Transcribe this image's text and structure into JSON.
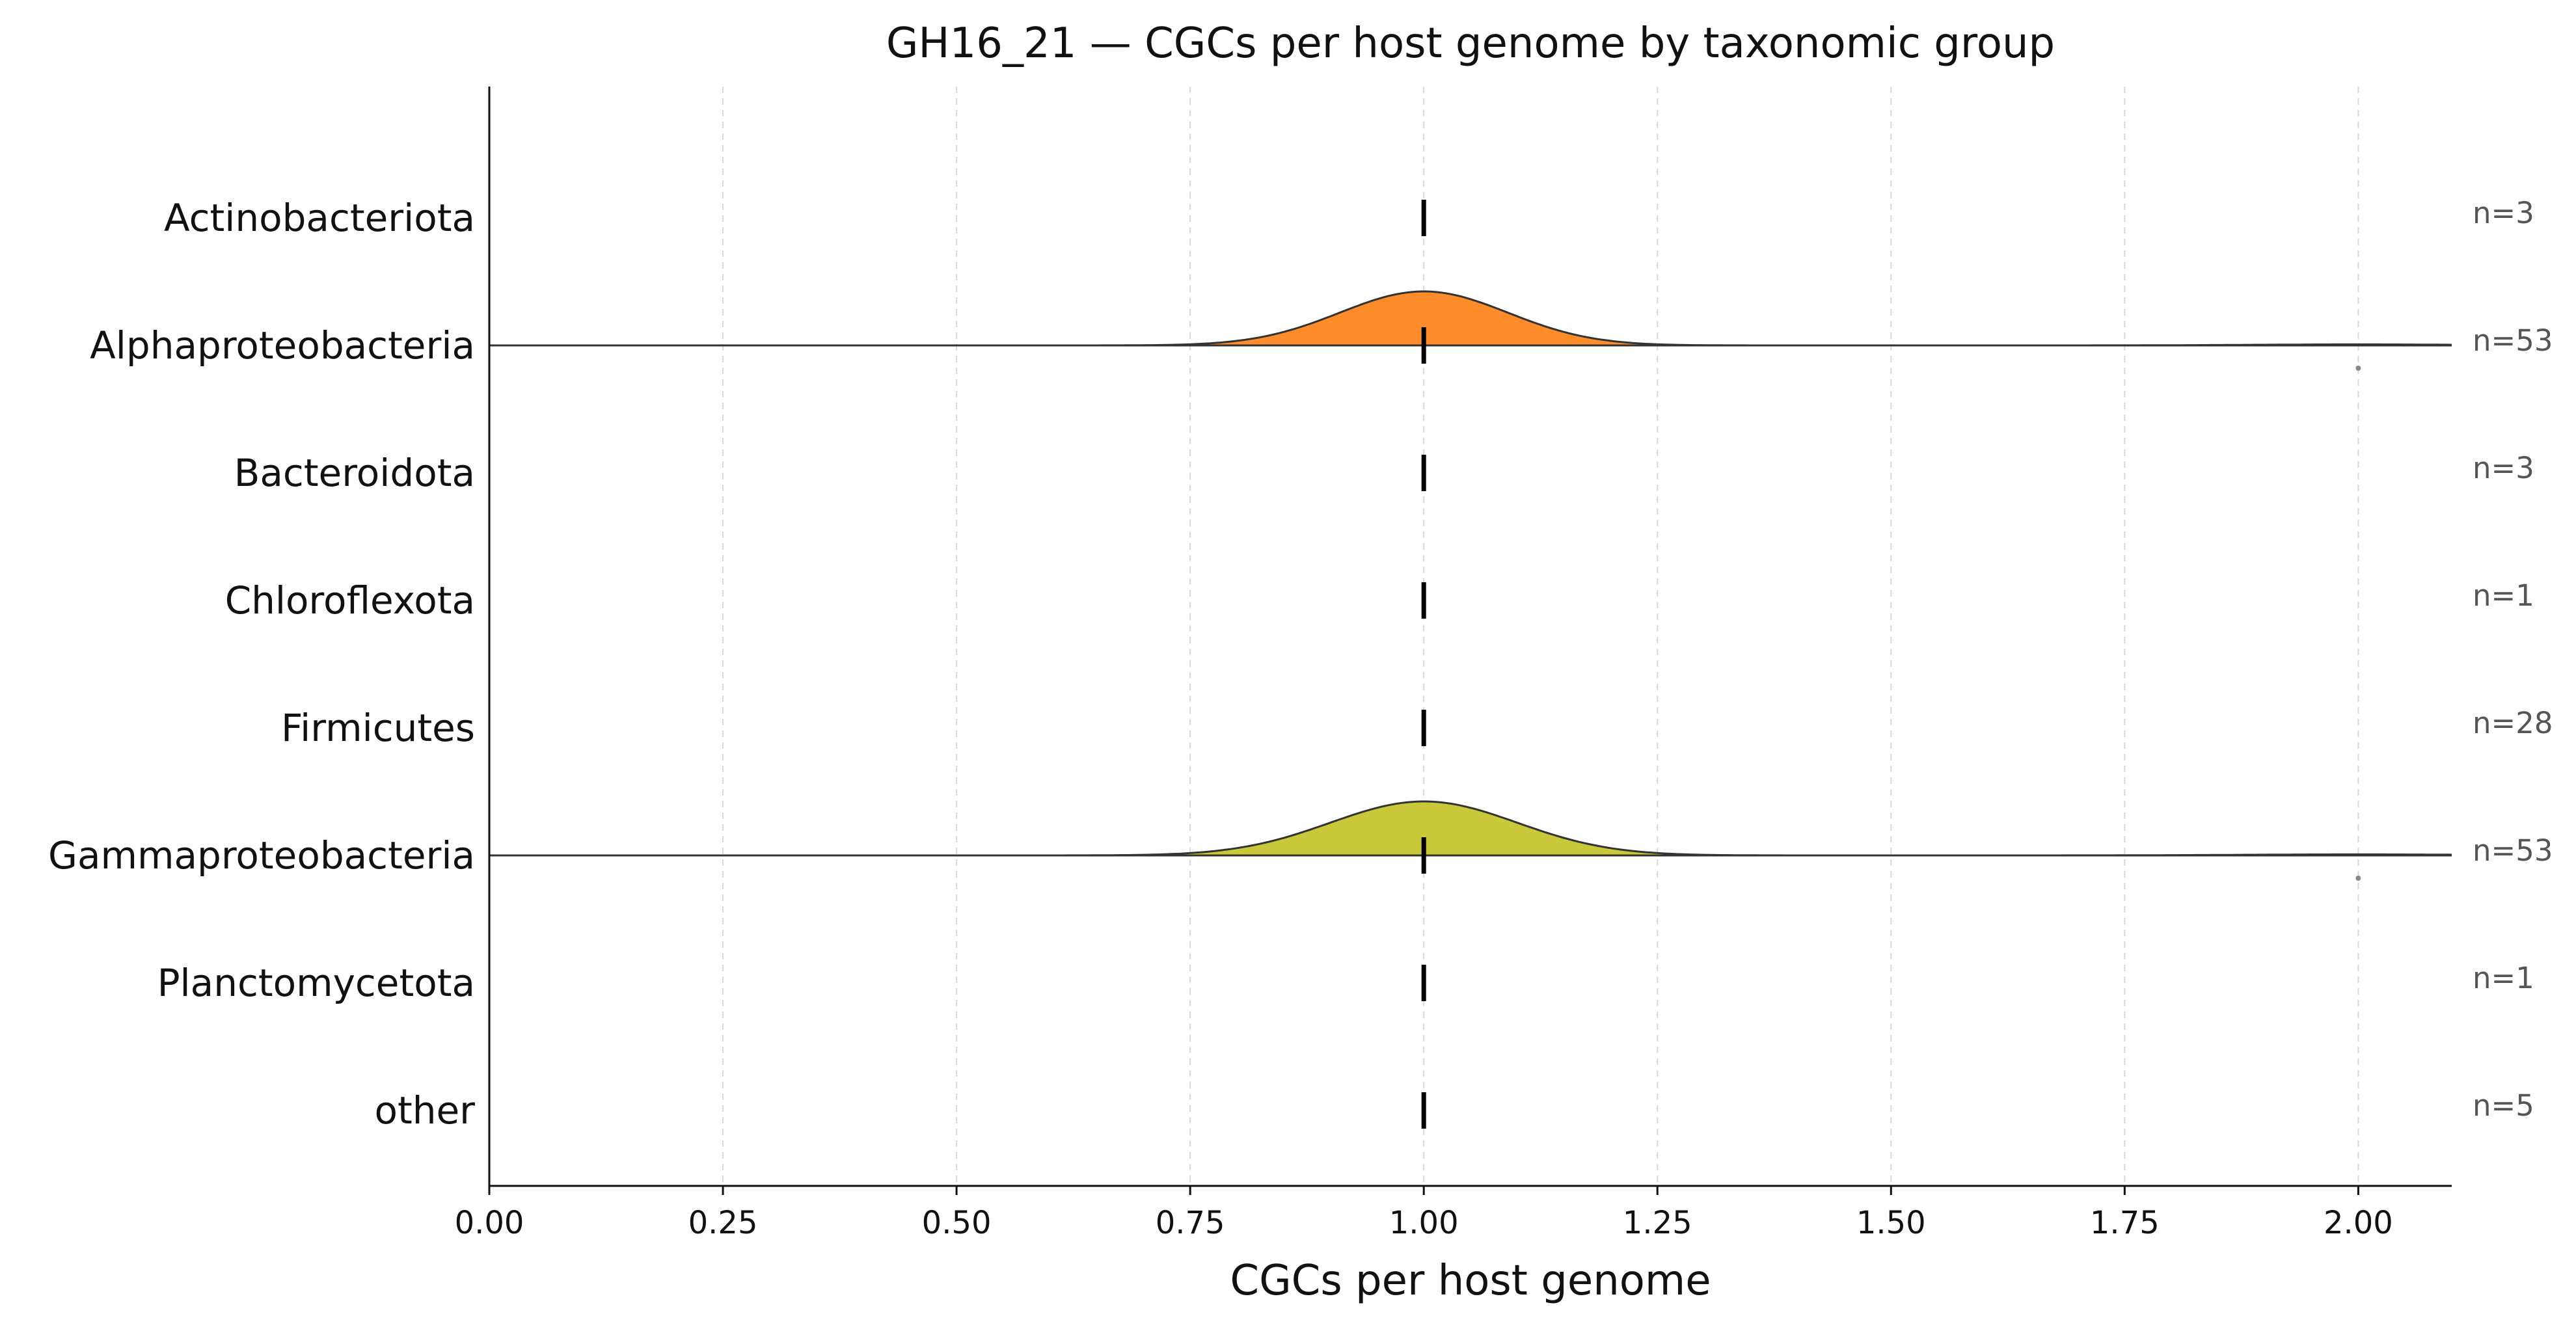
{
  "chart_data": {
    "type": "ridgeline",
    "title": "GH16_21 — CGCs per host genome by taxonomic group",
    "xlabel": "CGCs per host genome",
    "ylabel": "",
    "xlim": [
      0,
      2.1
    ],
    "xticks": [
      "0.00",
      "0.25",
      "0.50",
      "0.75",
      "1.00",
      "1.25",
      "1.50",
      "1.75",
      "2.00"
    ],
    "grid": "x-dashed",
    "median_marker": "dashed black vertical line",
    "categories": [
      "Actinobacteriota",
      "Alphaproteobacteria",
      "Bacteroidota",
      "Chloroflexota",
      "Firmicutes",
      "Gammaproteobacteria",
      "Planctomycetota",
      "other"
    ],
    "n_labels": [
      "n=3",
      "n=53",
      "n=3",
      "n=1",
      "n=28",
      "n=53",
      "n=1",
      "n=5"
    ],
    "medians": [
      1,
      1,
      1,
      1,
      1,
      1,
      1,
      1
    ],
    "densities": [
      {
        "category": "Alphaproteobacteria",
        "color": "#ff8c2a",
        "peak_x": 1.0,
        "bandwidth": 0.09,
        "main_weight": 52,
        "outlier_x": 2.0,
        "outlier_weight": 1
      },
      {
        "category": "Gammaproteobacteria",
        "color": "#c8c83a",
        "peak_x": 1.0,
        "bandwidth": 0.1,
        "main_weight": 52,
        "outlier_x": 2.0,
        "outlier_weight": 1
      }
    ]
  }
}
